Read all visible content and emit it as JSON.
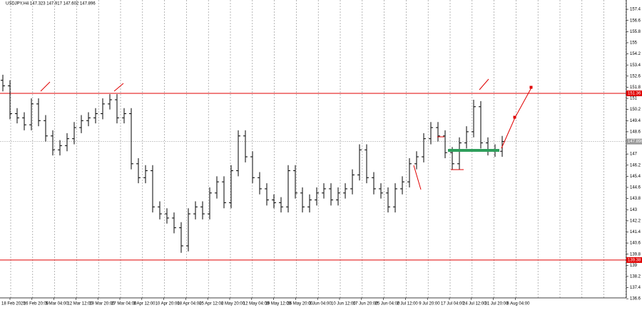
{
  "chart_data": {
    "type": "ohlc",
    "title": "USDJPY,H4  147.323 147.917 147.602 147.896",
    "color": "#000000",
    "open": [
      152.3,
      151.9,
      149.9,
      149.6,
      149.1,
      150.6,
      149.4,
      148.3,
      147.3,
      147.6,
      148.1,
      148.9,
      149.4,
      149.6,
      149.9,
      150.6,
      150.9,
      149.6,
      149.9,
      146.3,
      145.3,
      145.8,
      143.2,
      142.7,
      142.4,
      141.7,
      140.4,
      142.7,
      143.2,
      142.7,
      144.2,
      145.0,
      143.5,
      145.8,
      148.3,
      146.8,
      145.3,
      144.5,
      143.7,
      143.5,
      143.2,
      145.8,
      144.2,
      143.2,
      143.7,
      144.2,
      144.5,
      143.7,
      144.2,
      144.5,
      145.5,
      147.3,
      145.3,
      144.5,
      144.2,
      143.2,
      144.5,
      145.0,
      146.3,
      146.8,
      148.1,
      148.9,
      148.3,
      147.1,
      146.3,
      147.8,
      148.6,
      150.4,
      147.8,
      147.3,
      147.2
    ],
    "high": [
      152.7,
      152.3,
      150.3,
      150.0,
      151.0,
      151.0,
      149.8,
      148.7,
      148.0,
      148.5,
      149.3,
      149.8,
      150.0,
      150.3,
      151.0,
      151.3,
      151.3,
      150.3,
      150.3,
      146.7,
      146.2,
      146.2,
      143.6,
      143.1,
      142.8,
      142.1,
      143.1,
      143.6,
      143.6,
      144.6,
      145.4,
      145.4,
      146.2,
      148.7,
      148.7,
      147.2,
      145.7,
      144.9,
      144.1,
      143.9,
      146.2,
      146.2,
      144.6,
      144.1,
      144.6,
      144.9,
      144.9,
      144.6,
      144.9,
      145.9,
      147.7,
      147.7,
      145.7,
      144.9,
      144.6,
      144.9,
      145.4,
      146.7,
      147.2,
      148.5,
      149.3,
      149.3,
      148.7,
      147.5,
      148.2,
      149.0,
      150.9,
      150.8,
      148.2,
      147.7,
      148.3
    ],
    "low": [
      151.5,
      149.5,
      149.2,
      148.7,
      148.7,
      149.0,
      147.9,
      146.9,
      146.9,
      147.2,
      147.7,
      148.5,
      149.0,
      149.2,
      149.5,
      150.2,
      149.2,
      149.2,
      145.9,
      144.9,
      144.9,
      142.8,
      142.3,
      142.0,
      141.3,
      139.9,
      140.0,
      142.3,
      142.3,
      142.3,
      143.8,
      143.1,
      143.1,
      145.4,
      146.4,
      144.9,
      144.1,
      143.3,
      143.1,
      142.8,
      142.8,
      143.8,
      142.8,
      142.8,
      143.3,
      143.8,
      143.3,
      143.3,
      143.8,
      144.1,
      145.1,
      144.9,
      144.1,
      143.8,
      142.8,
      142.8,
      144.1,
      144.6,
      145.9,
      146.4,
      147.7,
      147.9,
      146.7,
      145.9,
      145.9,
      147.4,
      148.2,
      147.4,
      146.9,
      146.8,
      146.8
    ],
    "close": [
      151.9,
      149.9,
      149.6,
      149.1,
      150.6,
      149.4,
      148.3,
      147.3,
      147.6,
      148.1,
      148.9,
      149.4,
      149.6,
      149.9,
      150.6,
      150.9,
      149.6,
      149.9,
      146.3,
      145.3,
      145.8,
      143.2,
      142.7,
      142.4,
      141.7,
      140.4,
      142.7,
      143.2,
      142.7,
      144.2,
      145.0,
      143.5,
      145.8,
      148.3,
      146.8,
      145.3,
      144.5,
      143.7,
      143.5,
      143.2,
      145.8,
      144.2,
      143.2,
      143.7,
      144.2,
      144.5,
      143.7,
      144.2,
      144.5,
      145.5,
      147.3,
      145.3,
      144.5,
      144.2,
      143.2,
      144.5,
      145.0,
      146.3,
      146.8,
      148.1,
      148.9,
      148.3,
      147.1,
      146.3,
      147.8,
      148.6,
      150.4,
      147.8,
      147.3,
      147.2,
      147.9
    ],
    "x_labels": [
      "18 Feb 2025",
      "26 Feb 20:00",
      "5 Mar 04:00",
      "12 Mar 12:00",
      "19 Mar 20:00",
      "27 Mar 04:00",
      "3 Apr 12:00",
      "10 Apr 20:00",
      "18 Apr 04:00",
      "25 Apr 12:00",
      "2 May 20:00",
      "12 May 04:00",
      "19 May 12:00",
      "26 May 20:00",
      "3 Jun 04:00",
      "10 Jun 12:00",
      "17 Jun 20:00",
      "25 Jun 04:00",
      "2 Jul 12:00",
      "9 Jul 20:00",
      "17 Jul 04:00",
      "24 Jul 12:00",
      "31 Jul 20:00",
      "8 Aug 04:00"
    ],
    "ylim": [
      136.66,
      158.07
    ],
    "yticks": [
      136.6,
      137.4,
      138.2,
      139,
      139.8,
      140.6,
      141.4,
      142.2,
      143,
      143.8,
      144.6,
      145.4,
      146.2,
      147,
      147.8,
      148.6,
      149.4,
      150.2,
      151,
      151.8,
      152.6,
      153.4,
      154.2,
      155,
      155.8,
      156.6,
      157.4
    ],
    "hlines": [
      {
        "value": 151.36,
        "color": "#e00000"
      },
      {
        "value": 139.38,
        "color": "#e00000"
      },
      {
        "value": 147.896,
        "color": "#999999"
      }
    ]
  }
}
